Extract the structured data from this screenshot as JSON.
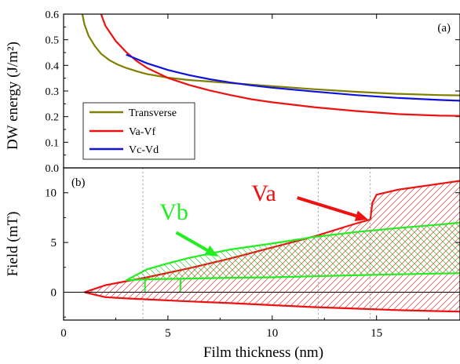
{
  "chart_data": [
    {
      "id": "a",
      "type": "line",
      "panel_label": "(a)",
      "ylabel": "DW energy (J/m²)",
      "xlim": [
        0,
        19
      ],
      "ylim": [
        0.0,
        0.6
      ],
      "yticks": [
        0.0,
        0.1,
        0.2,
        0.3,
        0.4,
        0.5,
        0.6
      ],
      "ytick_labels": [
        "0.0",
        "0.1",
        "0.2",
        "0.3",
        "0.4",
        "0.5",
        "0.6"
      ],
      "legend_position": "bottom-left",
      "series": [
        {
          "name": "Transverse",
          "color": "#808000",
          "x": [
            0.9,
            1.0,
            1.2,
            1.5,
            1.8,
            2.2,
            2.6,
            3.0,
            3.5,
            4.0,
            5.0,
            6.0,
            8.0,
            10.0,
            12.0,
            14.0,
            16.0,
            18.0,
            19.0
          ],
          "y": [
            0.6,
            0.56,
            0.515,
            0.475,
            0.445,
            0.42,
            0.403,
            0.39,
            0.377,
            0.366,
            0.352,
            0.343,
            0.331,
            0.319,
            0.307,
            0.297,
            0.289,
            0.284,
            0.283
          ]
        },
        {
          "name": "Va-Vf",
          "color": "#ee1111",
          "x": [
            1.8,
            2.0,
            2.5,
            3.0,
            3.5,
            4.0,
            5.0,
            6.0,
            7.0,
            8.0,
            9.0,
            10.0,
            12.0,
            14.0,
            16.0,
            18.0,
            19.0
          ],
          "y": [
            0.6,
            0.555,
            0.495,
            0.452,
            0.417,
            0.39,
            0.351,
            0.324,
            0.302,
            0.284,
            0.268,
            0.256,
            0.237,
            0.222,
            0.21,
            0.204,
            0.203
          ]
        },
        {
          "name": "Vc-Vd",
          "color": "#1111dd",
          "x": [
            3.0,
            4.0,
            5.0,
            6.0,
            7.0,
            8.0,
            9.0,
            10.0,
            12.0,
            14.0,
            16.0,
            18.0,
            19.0
          ],
          "y": [
            0.442,
            0.408,
            0.382,
            0.362,
            0.346,
            0.333,
            0.322,
            0.313,
            0.298,
            0.284,
            0.273,
            0.265,
            0.262
          ]
        }
      ]
    },
    {
      "id": "b",
      "type": "area",
      "panel_label": "(b)",
      "xlabel": "Film thickness (nm)",
      "ylabel": "Field (mT)",
      "xlim": [
        0,
        19
      ],
      "ylim": [
        -2.8,
        12.5
      ],
      "xticks": [
        0,
        5,
        10,
        15
      ],
      "xtick_labels": [
        "0",
        "5",
        "10",
        "15"
      ],
      "yticks": [
        0,
        5,
        10
      ],
      "ytick_labels": [
        "0",
        "5",
        "10"
      ],
      "vlines": [
        3.8,
        12.2,
        14.7
      ],
      "regions": [
        {
          "name": "Va",
          "color": "#ee1111",
          "upper": {
            "x": [
              1.0,
              2.0,
              3.0,
              4.0,
              6.0,
              8.0,
              10.0,
              12.0,
              14.0,
              14.7,
              14.8,
              15.0,
              16.0,
              17.0,
              18.0,
              19.0
            ],
            "y": [
              0.0,
              0.7,
              1.1,
              1.5,
              2.4,
              3.4,
              4.5,
              5.6,
              6.9,
              7.3,
              9.0,
              9.8,
              10.3,
              10.6,
              10.9,
              11.2
            ]
          },
          "lower": {
            "x": [
              1.0,
              2.0,
              3.0,
              4.0,
              6.0,
              8.0,
              10.0,
              12.0,
              14.0,
              16.0,
              18.0,
              19.0
            ],
            "y": [
              0.0,
              -0.5,
              -0.62,
              -0.72,
              -0.92,
              -1.1,
              -1.3,
              -1.5,
              -1.65,
              -1.8,
              -1.9,
              -1.95
            ]
          }
        },
        {
          "name": "Vb",
          "color": "#22ee22",
          "upper": {
            "x": [
              3.0,
              4.0,
              5.0,
              6.0,
              8.0,
              10.0,
              12.0,
              14.0,
              16.0,
              18.0,
              19.0
            ],
            "y": [
              1.2,
              2.3,
              2.9,
              3.45,
              4.3,
              4.9,
              5.55,
              6.05,
              6.45,
              6.8,
              7.0
            ]
          },
          "lower": {
            "x": [
              3.0,
              4.0,
              5.6,
              8.0,
              10.0,
              12.0,
              14.0,
              16.0,
              18.0,
              19.0
            ],
            "y": [
              1.2,
              1.3,
              1.35,
              1.45,
              1.5,
              1.6,
              1.7,
              1.8,
              1.88,
              1.92
            ]
          },
          "markers_x": [
            3.9,
            5.6
          ]
        }
      ],
      "annotations": [
        {
          "text": "Va",
          "x": 9.0,
          "y": 9.2,
          "color": "#ee1111",
          "arrow_from": [
            11.2,
            9.5
          ],
          "arrow_to": [
            14.6,
            7.3
          ]
        },
        {
          "text": "Vb",
          "x": 4.6,
          "y": 7.3,
          "color": "#22ee22",
          "arrow_from": [
            5.4,
            6.0
          ],
          "arrow_to": [
            7.4,
            3.6
          ]
        }
      ]
    }
  ]
}
